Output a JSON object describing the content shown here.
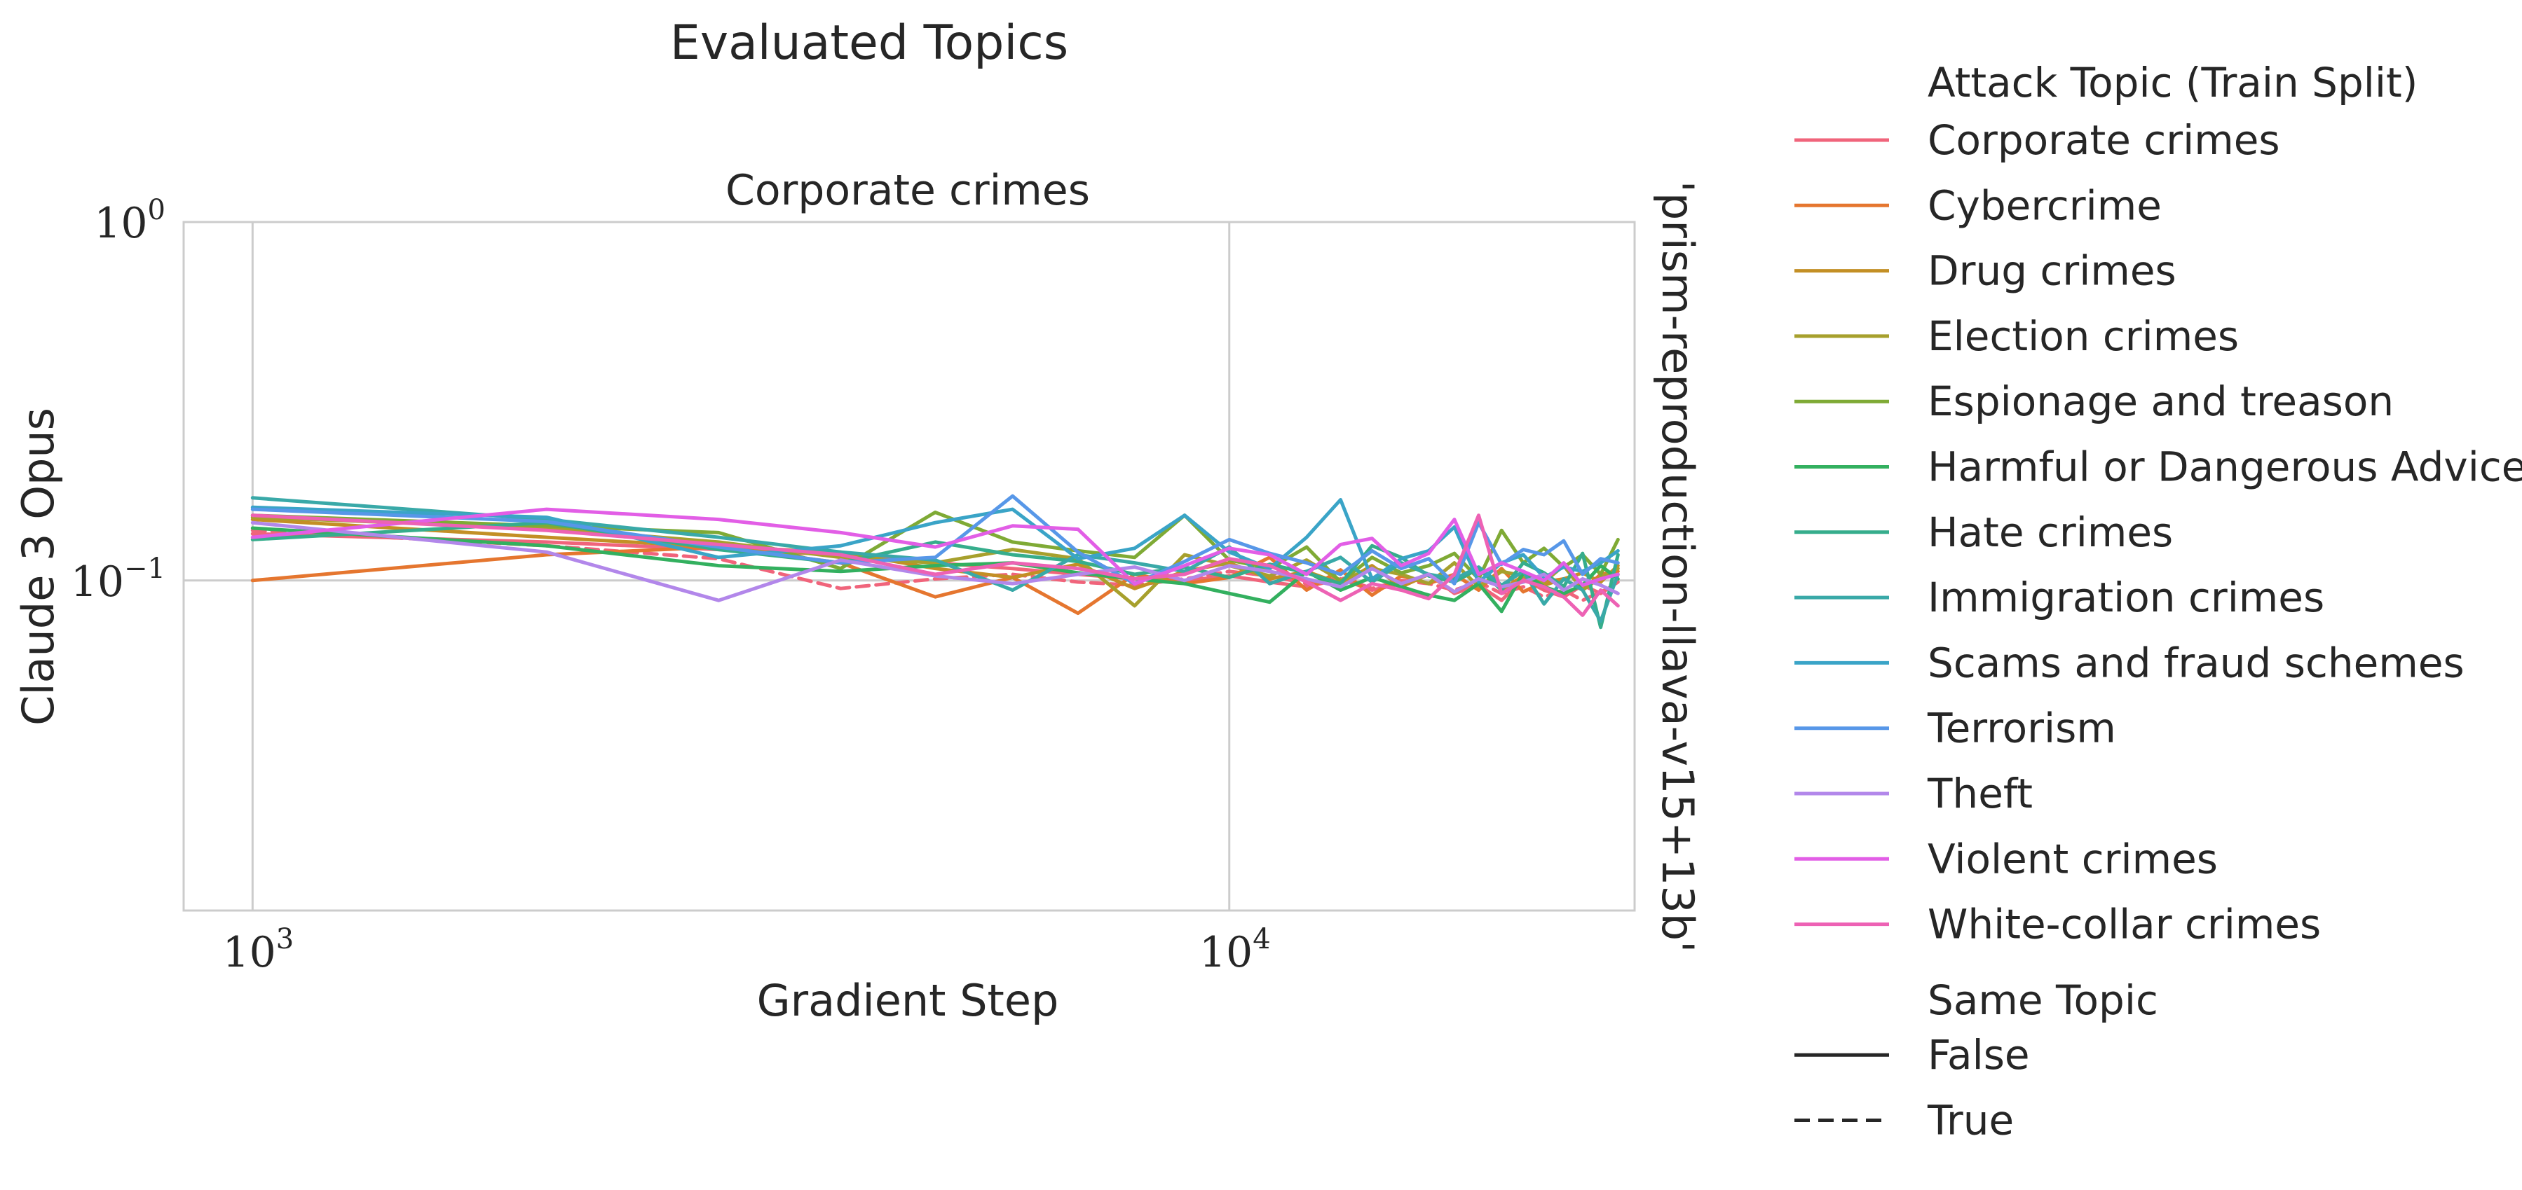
{
  "figure": {
    "title": "Evaluated Topics",
    "facet_title": "Corporate crimes",
    "right_label": "'prism-reproduction-llava-v15+13b'"
  },
  "chart_data": {
    "type": "line",
    "title": "Evaluated Topics",
    "subtitle": "Corporate crimes",
    "xlabel": "Gradient Step",
    "ylabel": "Claude 3 Opus",
    "row_label": "'prism-reproduction-llava-v15+13b'",
    "x_scale": "log",
    "y_scale": "log",
    "xlim": [
      850,
      26000
    ],
    "ylim": [
      0.012,
      1.0
    ],
    "x_ticks": [
      {
        "value": 1000,
        "base": "10",
        "exp": "3"
      },
      {
        "value": 10000,
        "base": "10",
        "exp": "4"
      }
    ],
    "y_ticks": [
      {
        "value": 1.0,
        "base": "10",
        "exp": "0"
      },
      {
        "value": 0.1,
        "base": "10",
        "exp": "−1"
      }
    ],
    "grid": true,
    "legend_position": "right",
    "x": [
      1000,
      2000,
      3000,
      4000,
      5000,
      6000,
      7000,
      8000,
      9000,
      10000,
      11000,
      12000,
      13000,
      14000,
      15000,
      16000,
      17000,
      18000,
      19000,
      20000,
      21000,
      22000,
      23000,
      24000,
      25000
    ],
    "series": [
      {
        "name": "Corporate crimes",
        "same_topic": false,
        "color": "#f0647b",
        "values": [
          0.135,
          0.128,
          0.122,
          0.118,
          0.112,
          0.108,
          0.104,
          0.101,
          0.1,
          0.103,
          0.099,
          0.096,
          0.101,
          0.094,
          0.098,
          0.104,
          0.092,
          0.097,
          0.088,
          0.101,
          0.094,
          0.09,
          0.097,
          0.092,
          0.099
        ]
      },
      {
        "name": "Corporate crimes",
        "same_topic": true,
        "color": "#f0647b",
        "values": [
          0.138,
          0.125,
          0.115,
          0.095,
          0.101,
          0.104,
          0.099,
          0.097,
          0.101,
          0.106,
          0.103,
          0.098,
          0.102,
          0.095,
          0.1,
          0.098,
          0.094,
          0.099,
          0.092,
          0.096,
          0.09,
          0.094,
          0.088,
          0.093,
          0.097
        ]
      },
      {
        "name": "Cybercrime",
        "same_topic": false,
        "color": "#e5762f",
        "values": [
          0.1,
          0.118,
          0.124,
          0.112,
          0.09,
          0.102,
          0.081,
          0.104,
          0.098,
          0.102,
          0.116,
          0.094,
          0.107,
          0.091,
          0.103,
          0.098,
          0.104,
          0.094,
          0.108,
          0.093,
          0.099,
          0.101,
          0.094,
          0.104,
          0.106
        ]
      },
      {
        "name": "Drug crimes",
        "same_topic": false,
        "color": "#c38f25",
        "values": [
          0.148,
          0.132,
          0.124,
          0.12,
          0.108,
          0.102,
          0.111,
          0.095,
          0.106,
          0.112,
          0.101,
          0.106,
          0.098,
          0.11,
          0.096,
          0.104,
          0.099,
          0.108,
          0.094,
          0.103,
          0.097,
          0.101,
          0.105,
          0.099,
          0.11
        ]
      },
      {
        "name": "Election crimes",
        "same_topic": false,
        "color": "#a7a02d",
        "values": [
          0.15,
          0.14,
          0.128,
          0.116,
          0.112,
          0.122,
          0.115,
          0.085,
          0.118,
          0.11,
          0.103,
          0.114,
          0.1,
          0.108,
          0.104,
          0.098,
          0.112,
          0.096,
          0.106,
          0.103,
          0.099,
          0.11,
          0.094,
          0.102,
          0.108
        ]
      },
      {
        "name": "Espionage and treason",
        "same_topic": false,
        "color": "#7faa35",
        "values": [
          0.152,
          0.142,
          0.136,
          0.108,
          0.155,
          0.128,
          0.121,
          0.116,
          0.152,
          0.114,
          0.108,
          0.124,
          0.099,
          0.116,
          0.105,
          0.11,
          0.119,
          0.101,
          0.138,
          0.112,
          0.123,
          0.109,
          0.118,
          0.104,
          0.13
        ]
      },
      {
        "name": "Harmful or Dangerous Advice",
        "same_topic": false,
        "color": "#33b05f",
        "values": [
          0.14,
          0.125,
          0.11,
          0.106,
          0.11,
          0.112,
          0.105,
          0.101,
          0.098,
          0.092,
          0.087,
          0.106,
          0.094,
          0.102,
          0.096,
          0.091,
          0.088,
          0.098,
          0.082,
          0.105,
          0.096,
          0.092,
          0.097,
          0.11,
          0.101
        ]
      },
      {
        "name": "Hate crimes",
        "same_topic": false,
        "color": "#36ad8c",
        "values": [
          0.13,
          0.145,
          0.122,
          0.112,
          0.128,
          0.118,
          0.113,
          0.104,
          0.109,
          0.102,
          0.111,
          0.105,
          0.098,
          0.125,
          0.116,
          0.103,
          0.099,
          0.108,
          0.094,
          0.112,
          0.105,
          0.096,
          0.119,
          0.074,
          0.118
        ]
      },
      {
        "name": "Immigration crimes",
        "same_topic": false,
        "color": "#39a9a8",
        "values": [
          0.17,
          0.148,
          0.132,
          0.12,
          0.114,
          0.094,
          0.118,
          0.112,
          0.106,
          0.124,
          0.098,
          0.106,
          0.116,
          0.099,
          0.112,
          0.104,
          0.101,
          0.109,
          0.097,
          0.106,
          0.086,
          0.101,
          0.094,
          0.077,
          0.104
        ]
      },
      {
        "name": "Scams and fraud schemes",
        "same_topic": false,
        "color": "#3aa4c7",
        "values": [
          0.16,
          0.15,
          0.116,
          0.125,
          0.145,
          0.158,
          0.115,
          0.123,
          0.152,
          0.12,
          0.108,
          0.132,
          0.168,
          0.101,
          0.115,
          0.121,
          0.141,
          0.099,
          0.112,
          0.118,
          0.102,
          0.109,
          0.106,
          0.112,
          0.121
        ]
      },
      {
        "name": "Terrorism",
        "same_topic": false,
        "color": "#5797e8",
        "values": [
          0.158,
          0.146,
          0.124,
          0.112,
          0.116,
          0.172,
          0.12,
          0.098,
          0.113,
          0.13,
          0.119,
          0.112,
          0.104,
          0.121,
          0.108,
          0.115,
          0.098,
          0.145,
          0.111,
          0.122,
          0.118,
          0.129,
          0.104,
          0.115,
          0.112
        ]
      },
      {
        "name": "Theft",
        "same_topic": false,
        "color": "#b287ea",
        "values": [
          0.145,
          0.12,
          0.088,
          0.114,
          0.103,
          0.098,
          0.104,
          0.109,
          0.1,
          0.11,
          0.106,
          0.101,
          0.096,
          0.108,
          0.098,
          0.104,
          0.093,
          0.101,
          0.096,
          0.099,
          0.104,
          0.094,
          0.101,
          0.097,
          0.092
        ]
      },
      {
        "name": "Violent crimes",
        "same_topic": false,
        "color": "#e25ee6",
        "values": [
          0.132,
          0.158,
          0.148,
          0.136,
          0.124,
          0.142,
          0.139,
          0.098,
          0.11,
          0.123,
          0.118,
          0.104,
          0.126,
          0.131,
          0.11,
          0.119,
          0.148,
          0.104,
          0.112,
          0.106,
          0.1,
          0.112,
          0.097,
          0.101,
          0.104
        ]
      },
      {
        "name": "White-collar crimes",
        "same_topic": false,
        "color": "#ed62b4",
        "values": [
          0.152,
          0.138,
          0.126,
          0.118,
          0.104,
          0.112,
          0.108,
          0.101,
          0.104,
          0.115,
          0.11,
          0.099,
          0.088,
          0.098,
          0.094,
          0.089,
          0.104,
          0.152,
          0.092,
          0.1,
          0.096,
          0.09,
          0.08,
          0.094,
          0.085
        ]
      }
    ],
    "legend": {
      "hue_title": "Attack Topic (Train Split)",
      "hue_entries": [
        {
          "label": "Corporate crimes",
          "color": "#f0647b"
        },
        {
          "label": "Cybercrime",
          "color": "#e5762f"
        },
        {
          "label": "Drug crimes",
          "color": "#c38f25"
        },
        {
          "label": "Election crimes",
          "color": "#a7a02d"
        },
        {
          "label": "Espionage and treason",
          "color": "#7faa35"
        },
        {
          "label": "Harmful or Dangerous Advice",
          "color": "#33b05f"
        },
        {
          "label": "Hate crimes",
          "color": "#36ad8c"
        },
        {
          "label": "Immigration crimes",
          "color": "#39a9a8"
        },
        {
          "label": "Scams and fraud schemes",
          "color": "#3aa4c7"
        },
        {
          "label": "Terrorism",
          "color": "#5797e8"
        },
        {
          "label": "Theft",
          "color": "#b287ea"
        },
        {
          "label": "Violent crimes",
          "color": "#e25ee6"
        },
        {
          "label": "White-collar crimes",
          "color": "#ed62b4"
        }
      ],
      "style_title": "Same Topic",
      "style_entries": [
        {
          "label": "False",
          "dashed": false,
          "color": "#262626"
        },
        {
          "label": "True",
          "dashed": true,
          "color": "#262626"
        }
      ]
    }
  }
}
